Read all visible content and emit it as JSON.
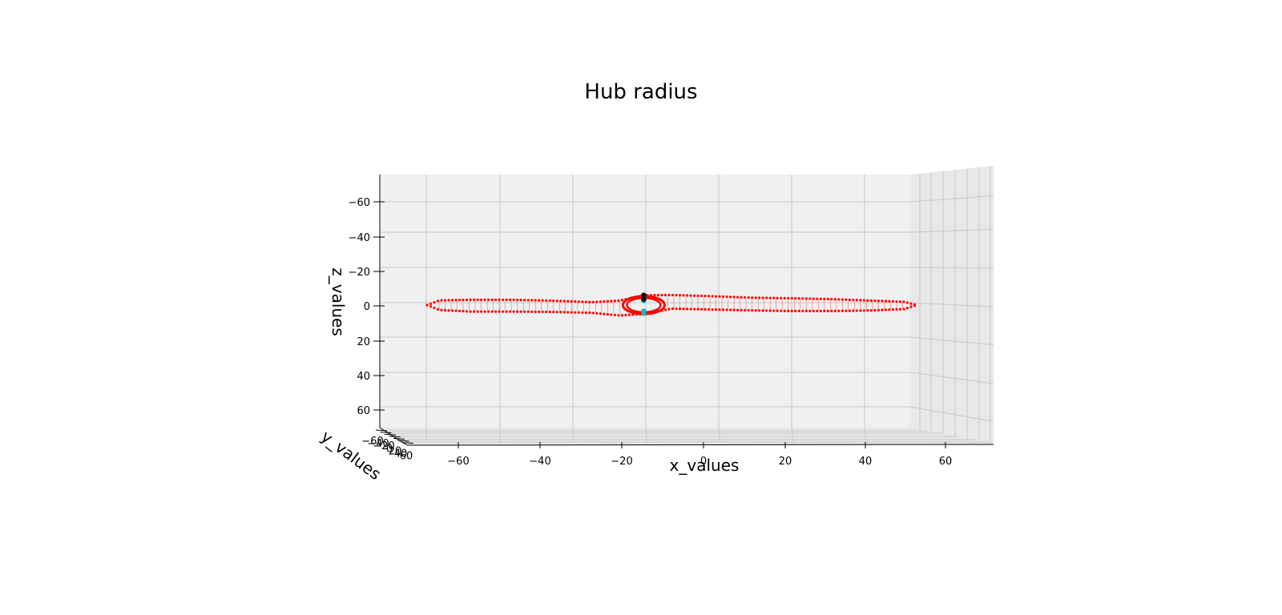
{
  "chart_data": {
    "type": "scatter",
    "projection": "3d",
    "title": "Hub radius",
    "xlabel": "x_values",
    "ylabel": "y_values",
    "zlabel": "z_values",
    "xlim": [
      -70,
      70
    ],
    "ylim": [
      -70,
      70
    ],
    "zlim": [
      -70,
      70
    ],
    "z_axis_inverted": true,
    "grid": true,
    "x_ticks": [
      -60,
      -40,
      -20,
      0,
      20,
      40,
      60
    ],
    "y_ticks": [
      -60,
      -40,
      -20,
      0,
      20,
      40,
      60
    ],
    "z_ticks": [
      -60,
      -40,
      -20,
      0,
      20,
      40,
      60
    ],
    "x_tick_labels": [
      "−60",
      "−40",
      "−20",
      "0",
      "20",
      "40",
      "60"
    ],
    "y_tick_labels": [
      "−60",
      "−40",
      "−20",
      "0",
      "20",
      "40",
      "60"
    ],
    "z_tick_labels": [
      "−60",
      "−40",
      "−20",
      "0",
      "20",
      "40",
      "60"
    ],
    "series": [
      {
        "color": "#ff0000",
        "marker": "dot",
        "blade_sections": [
          {
            "x": -60,
            "z_top": -1.5,
            "z_bottom": 1.5
          },
          {
            "x": -50,
            "z_top": -1.8,
            "z_bottom": 2.2
          },
          {
            "x": -40,
            "z_top": -1.8,
            "z_bottom": 2.2
          },
          {
            "x": -30,
            "z_top": -1.5,
            "z_bottom": 2.3
          },
          {
            "x": -20,
            "z_top": -1.0,
            "z_bottom": 2.6
          },
          {
            "x": -13,
            "z_top": -1.5,
            "z_bottom": 3.5
          },
          {
            "x": -7,
            "z_top": -3.3,
            "z_bottom": 3.0
          },
          {
            "x": 0,
            "z_top": -3.4,
            "z_bottom": 1.2
          },
          {
            "x": 10,
            "z_top": -3.0,
            "z_bottom": 1.5
          },
          {
            "x": 20,
            "z_top": -2.5,
            "z_bottom": 1.8
          },
          {
            "x": 30,
            "z_top": -2.3,
            "z_bottom": 2.0
          },
          {
            "x": 40,
            "z_top": -2.0,
            "z_bottom": 2.0
          },
          {
            "x": 50,
            "z_top": -1.5,
            "z_bottom": 1.8
          },
          {
            "x": 60,
            "z_top": -1.0,
            "z_bottom": 1.2
          }
        ],
        "hub_rings": [
          {
            "x": -7,
            "rx": 5.2,
            "rz": 3.0
          },
          {
            "x": -7,
            "rx": 4.2,
            "rz": 2.4
          }
        ]
      },
      {
        "color": "#00bfbf",
        "marker": "dot",
        "points": [
          {
            "x": -7,
            "z": -2.5
          },
          {
            "x": -7,
            "z": -1.5
          },
          {
            "x": -7,
            "z": 2.0
          },
          {
            "x": -7,
            "z": 2.8
          }
        ]
      },
      {
        "color": "#111111",
        "marker": "dot",
        "points": [
          {
            "x": -7,
            "z": -3.3
          },
          {
            "x": -7,
            "z": -2.0
          }
        ]
      }
    ]
  }
}
